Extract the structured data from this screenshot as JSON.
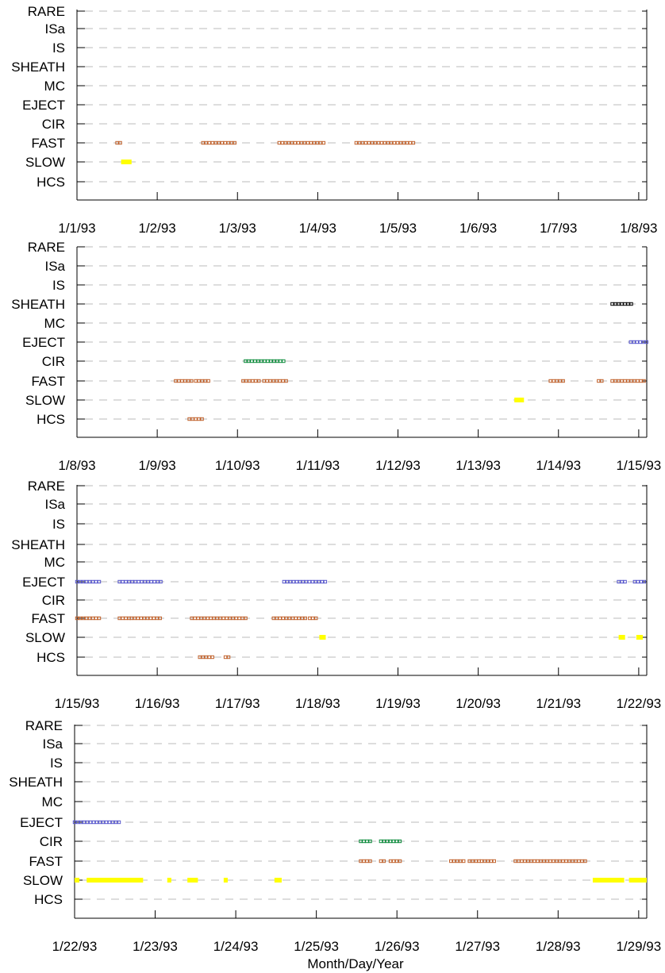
{
  "chart_data": {
    "type": "scatter",
    "x_axis_title": "Month/Day/Year",
    "y_categories": [
      "RARE",
      "ISa",
      "IS",
      "SHEATH",
      "MC",
      "EJECT",
      "CIR",
      "FAST",
      "SLOW",
      "HCS"
    ],
    "grid": "dashed horizontal",
    "colors": {
      "FAST": "#c0602a",
      "HCS": "#c0602a",
      "SLOW": "#ffff00",
      "CIR": "#0a8a3a",
      "EJECT": "#5555cc",
      "SHEATH": "#000000",
      "grid": "#bbbbbb",
      "axis": "#000000"
    },
    "panels": [
      {
        "xticks": [
          "1/1/93",
          "1/2/93",
          "1/3/93",
          "1/4/93",
          "1/5/93",
          "1/6/93",
          "1/7/93",
          "1/8/93"
        ],
        "xrange_days": [
          0,
          7.1
        ],
        "series": [
          {
            "category": "FAST",
            "marker": "square",
            "intervals": [
              [
                0.5,
                0.52
              ],
              [
                1.57,
                1.98
              ],
              [
                2.52,
                3.08
              ],
              [
                3.48,
                4.18
              ]
            ]
          },
          {
            "category": "SLOW",
            "marker": "bar",
            "intervals": [
              [
                0.55,
                0.68
              ]
            ]
          }
        ]
      },
      {
        "xticks": [
          "1/8/93",
          "1/9/93",
          "1/10/93",
          "1/11/93",
          "1/12/93",
          "1/13/93",
          "1/14/93",
          "1/15/93"
        ],
        "xrange_days": [
          0,
          7.1
        ],
        "series": [
          {
            "category": "FAST",
            "marker": "square",
            "intervals": [
              [
                1.23,
                1.43
              ],
              [
                1.48,
                1.63
              ],
              [
                2.07,
                2.27
              ],
              [
                2.33,
                2.6
              ],
              [
                5.9,
                6.05
              ],
              [
                6.5,
                6.52
              ],
              [
                6.67,
                7.1
              ]
            ]
          },
          {
            "category": "CIR",
            "marker": "square",
            "intervals": [
              [
                2.1,
                2.58
              ]
            ]
          },
          {
            "category": "HCS",
            "marker": "square",
            "intervals": [
              [
                1.4,
                1.55
              ]
            ]
          },
          {
            "category": "SLOW",
            "marker": "bar",
            "intervals": [
              [
                5.45,
                5.57
              ]
            ]
          },
          {
            "category": "SHEATH",
            "marker": "square",
            "intervals": [
              [
                6.67,
                6.92
              ]
            ]
          },
          {
            "category": "EJECT",
            "marker": "square",
            "intervals": [
              [
                6.9,
                7.1
              ]
            ]
          }
        ]
      },
      {
        "xticks": [
          "1/15/93",
          "1/16/93",
          "1/17/93",
          "1/18/93",
          "1/19/93",
          "1/20/93",
          "1/21/93",
          "1/22/93"
        ],
        "xrange_days": [
          0,
          7.1
        ],
        "series": [
          {
            "category": "EJECT",
            "marker": "square",
            "intervals": [
              [
                0,
                0.27
              ],
              [
                0.53,
                1.05
              ],
              [
                2.58,
                3.08
              ],
              [
                6.75,
                6.82
              ],
              [
                6.95,
                7.1
              ]
            ]
          },
          {
            "category": "FAST",
            "marker": "square",
            "intervals": [
              [
                0,
                0.27
              ],
              [
                0.53,
                0.63
              ],
              [
                0.68,
                1.05
              ],
              [
                1.43,
                2.12
              ],
              [
                2.45,
                2.85
              ],
              [
                2.9,
                2.98
              ]
            ]
          },
          {
            "category": "HCS",
            "marker": "square",
            "intervals": [
              [
                1.53,
                1.67
              ],
              [
                1.85,
                1.87
              ]
            ]
          },
          {
            "category": "SLOW",
            "marker": "bar",
            "intervals": [
              [
                3.02,
                3.1
              ],
              [
                6.75,
                6.83
              ],
              [
                6.97,
                7.05
              ]
            ]
          }
        ]
      },
      {
        "xticks": [
          "1/22/93",
          "1/23/93",
          "1/24/93",
          "1/25/93",
          "1/26/93",
          "1/27/93",
          "1/28/93",
          "1/29/93"
        ],
        "xrange_days": [
          0,
          7.1
        ],
        "series": [
          {
            "category": "EJECT",
            "marker": "square",
            "intervals": [
              [
                0,
                0.57
              ]
            ]
          },
          {
            "category": "CIR",
            "marker": "square",
            "intervals": [
              [
                3.55,
                3.67
              ],
              [
                3.8,
                4.05
              ]
            ]
          },
          {
            "category": "FAST",
            "marker": "square",
            "intervals": [
              [
                3.55,
                3.67
              ],
              [
                3.8,
                3.83
              ],
              [
                3.92,
                4.05
              ],
              [
                4.67,
                4.83
              ],
              [
                4.9,
                4.92
              ],
              [
                4.98,
                5.0
              ],
              [
                5.05,
                5.22
              ],
              [
                5.47,
                6.35
              ]
            ]
          },
          {
            "category": "SLOW",
            "marker": "bar",
            "intervals": [
              [
                0,
                0.06
              ],
              [
                0.15,
                0.85
              ],
              [
                1.15,
                1.2
              ],
              [
                1.4,
                1.53
              ],
              [
                1.85,
                1.9
              ],
              [
                2.48,
                2.57
              ],
              [
                6.43,
                6.82
              ],
              [
                6.88,
                7.1
              ]
            ]
          }
        ]
      }
    ]
  }
}
